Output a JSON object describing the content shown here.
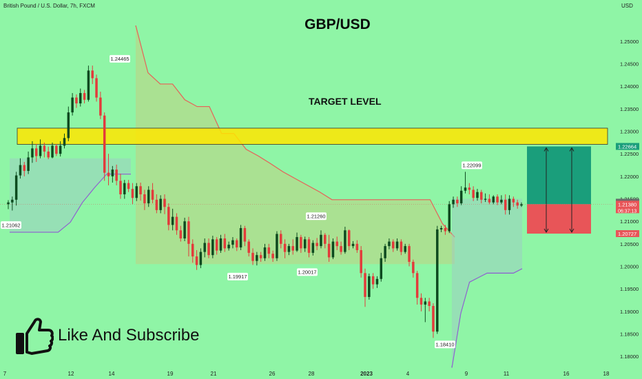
{
  "header": {
    "symbol_line": "British Pound / U.S. Dollar, 7h, FXCM",
    "currency": "USD",
    "title": "GBP/USD",
    "target_label": "TARGET LEVEL",
    "social_text": "Like And Subscribe"
  },
  "colors": {
    "background": "#8ff5a6",
    "bull": "#0d4a1f",
    "bear": "#e23b3b",
    "target_zone": "#ffe600",
    "profit_zone": "#1a9e7b",
    "loss_zone": "#e85558",
    "trail_upper": "#e35a5a",
    "trail_lower": "#8a4fd0"
  },
  "chart_data": {
    "type": "candlestick",
    "y_ticks": [
      "1.25000",
      "1.24500",
      "1.24000",
      "1.23500",
      "1.23000",
      "1.22500",
      "1.22000",
      "1.21500",
      "1.21000",
      "1.20500",
      "1.20000",
      "1.19500",
      "1.19000",
      "1.18500",
      "1.18000"
    ],
    "x_ticks": [
      "7",
      "12",
      "14",
      "19",
      "21",
      "26",
      "28",
      "2023",
      "4",
      "9",
      "11",
      "16",
      "18"
    ],
    "ylim": [
      1.1765,
      1.2555
    ],
    "target_zone": [
      1.2271,
      1.2307
    ],
    "position": {
      "profit_price": "1.22664",
      "last_price": "1.21425",
      "current_price": "1.21380",
      "countdown": "06:37:13",
      "stop_price": "1.20727"
    },
    "annotations": [
      {
        "label": "1.21062",
        "value": 1.21062
      },
      {
        "label": "1.24465",
        "value": 1.24465
      },
      {
        "label": "1.19917",
        "value": 1.19917
      },
      {
        "label": "1.21260",
        "value": 1.2126
      },
      {
        "label": "1.20017",
        "value": 1.20017
      },
      {
        "label": "1.18410",
        "value": 1.1841
      },
      {
        "label": "1.22099",
        "value": 1.22099
      }
    ],
    "trail_upper": [
      1.2535,
      1.243,
      1.2405,
      1.2405,
      1.237,
      1.2355,
      1.2355,
      1.2295,
      1.2295,
      1.226,
      1.2245,
      1.2228,
      1.221,
      1.2195,
      1.218,
      1.2165,
      1.2148,
      1.2148,
      1.2148,
      1.2148,
      1.2148,
      1.2148,
      1.2148,
      1.2148,
      1.2148,
      1.2095,
      1.2065
    ],
    "trail_lower": [
      1.2076,
      1.2076,
      1.2076,
      1.2076,
      1.2076,
      1.2098,
      1.2142,
      1.2175,
      1.2205,
      1.2205,
      1.2205
    ],
    "trail_lower2": [
      1.1775,
      1.1895,
      1.1965,
      1.1975,
      1.1985,
      1.1985,
      1.1985,
      1.1985,
      1.1995
    ],
    "candles": [
      [
        1.2138,
        1.2142,
        1.2127,
        1.2147
      ],
      [
        1.2142,
        1.2148,
        1.2124,
        1.2155
      ],
      [
        1.2148,
        1.2202,
        1.2135,
        1.221
      ],
      [
        1.2202,
        1.2225,
        1.2195,
        1.224
      ],
      [
        1.2225,
        1.2212,
        1.22,
        1.2232
      ],
      [
        1.2212,
        1.2242,
        1.2205,
        1.2255
      ],
      [
        1.2242,
        1.2262,
        1.223,
        1.2278
      ],
      [
        1.2262,
        1.2245,
        1.2232,
        1.2272
      ],
      [
        1.2245,
        1.2268,
        1.224,
        1.2282
      ],
      [
        1.2268,
        1.2255,
        1.2242,
        1.2275
      ],
      [
        1.2255,
        1.2242,
        1.2238,
        1.2266
      ],
      [
        1.2242,
        1.2268,
        1.224,
        1.2275
      ],
      [
        1.2268,
        1.225,
        1.2245,
        1.2272
      ],
      [
        1.225,
        1.2268,
        1.2244,
        1.2278
      ],
      [
        1.2268,
        1.2285,
        1.2262,
        1.2295
      ],
      [
        1.2285,
        1.2342,
        1.2278,
        1.2355
      ],
      [
        1.2342,
        1.2375,
        1.2335,
        1.2385
      ],
      [
        1.2375,
        1.2362,
        1.2352,
        1.2382
      ],
      [
        1.2362,
        1.2385,
        1.2355,
        1.2395
      ],
      [
        1.2385,
        1.237,
        1.2362,
        1.2392
      ],
      [
        1.237,
        1.2435,
        1.2366,
        1.2446
      ],
      [
        1.2435,
        1.2418,
        1.2405,
        1.2446
      ],
      [
        1.2418,
        1.2375,
        1.2366,
        1.2426
      ],
      [
        1.2375,
        1.2335,
        1.2327,
        1.2388
      ],
      [
        1.2335,
        1.2208,
        1.219,
        1.2342
      ],
      [
        1.2208,
        1.22,
        1.218,
        1.225
      ],
      [
        1.22,
        1.2215,
        1.2186,
        1.2223
      ],
      [
        1.2215,
        1.219,
        1.218,
        1.2226
      ],
      [
        1.219,
        1.216,
        1.215,
        1.2206
      ],
      [
        1.216,
        1.2185,
        1.215,
        1.2192
      ],
      [
        1.2185,
        1.2172,
        1.2165,
        1.2192
      ],
      [
        1.2172,
        1.2152,
        1.2138,
        1.2185
      ],
      [
        1.2152,
        1.2178,
        1.2145,
        1.2185
      ],
      [
        1.2178,
        1.216,
        1.2146,
        1.2186
      ],
      [
        1.216,
        1.214,
        1.2125,
        1.217
      ],
      [
        1.214,
        1.217,
        1.2132,
        1.2178
      ],
      [
        1.217,
        1.2148,
        1.214,
        1.2185
      ],
      [
        1.2148,
        1.2125,
        1.2118,
        1.216
      ],
      [
        1.2125,
        1.215,
        1.2118,
        1.2158
      ],
      [
        1.215,
        1.2132,
        1.2116,
        1.216
      ],
      [
        1.2132,
        1.2092,
        1.208,
        1.214
      ],
      [
        1.2092,
        1.211,
        1.208,
        1.2128
      ],
      [
        1.211,
        1.208,
        1.207,
        1.2118
      ],
      [
        1.208,
        1.2062,
        1.2055,
        1.209
      ],
      [
        1.2062,
        1.21,
        1.2056,
        1.2108
      ],
      [
        1.21,
        1.205,
        1.2022,
        1.211
      ],
      [
        1.205,
        1.2022,
        1.2008,
        1.206
      ],
      [
        1.2022,
        1.2003,
        1.1992,
        1.2036
      ],
      [
        1.2003,
        1.2032,
        1.1996,
        1.204
      ],
      [
        1.2032,
        1.2052,
        1.202,
        1.2062
      ],
      [
        1.2052,
        1.2025,
        1.2018,
        1.2062
      ],
      [
        1.2025,
        1.206,
        1.2018,
        1.2068
      ],
      [
        1.206,
        1.2035,
        1.2026,
        1.2065
      ],
      [
        1.2035,
        1.2062,
        1.203,
        1.207
      ],
      [
        1.2062,
        1.204,
        1.2032,
        1.2072
      ],
      [
        1.204,
        1.2048,
        1.2035,
        1.2055
      ],
      [
        1.2048,
        1.2058,
        1.204,
        1.2065
      ],
      [
        1.2058,
        1.2042,
        1.2034,
        1.2062
      ],
      [
        1.2042,
        1.2085,
        1.2036,
        1.2092
      ],
      [
        1.2085,
        1.2055,
        1.2045,
        1.209
      ],
      [
        1.2055,
        1.203,
        1.2022,
        1.206
      ],
      [
        1.203,
        1.2012,
        1.2003,
        1.204
      ],
      [
        1.2012,
        1.2025,
        1.2002,
        1.2032
      ],
      [
        1.2025,
        1.2018,
        1.201,
        1.2032
      ],
      [
        1.2018,
        1.2042,
        1.2012,
        1.205
      ],
      [
        1.2042,
        1.2028,
        1.2018,
        1.205
      ],
      [
        1.2028,
        1.2018,
        1.201,
        1.2035
      ],
      [
        1.2018,
        1.2072,
        1.2012,
        1.2078
      ],
      [
        1.2072,
        1.205,
        1.204,
        1.208
      ],
      [
        1.205,
        1.2032,
        1.2018,
        1.206
      ],
      [
        1.2032,
        1.2045,
        1.2025,
        1.205
      ],
      [
        1.2045,
        1.2035,
        1.2026,
        1.206
      ],
      [
        1.2035,
        1.2065,
        1.2032,
        1.2075
      ],
      [
        1.2065,
        1.204,
        1.203,
        1.207
      ],
      [
        1.204,
        1.206,
        1.2032,
        1.2066
      ],
      [
        1.206,
        1.203,
        1.202,
        1.2065
      ],
      [
        1.203,
        1.2052,
        1.2024,
        1.2058
      ],
      [
        1.2052,
        1.2045,
        1.2036,
        1.2063
      ],
      [
        1.2045,
        1.207,
        1.204,
        1.208
      ],
      [
        1.207,
        1.205,
        1.204,
        1.2074
      ],
      [
        1.205,
        1.202,
        1.201,
        1.207
      ],
      [
        1.202,
        1.2055,
        1.2016,
        1.2062
      ],
      [
        1.2055,
        1.2045,
        1.2036,
        1.2066
      ],
      [
        1.2045,
        1.2032,
        1.2026,
        1.2055
      ],
      [
        1.2032,
        1.208,
        1.2028,
        1.2088
      ],
      [
        1.208,
        1.2045,
        1.2036,
        1.2082
      ],
      [
        1.2045,
        1.205,
        1.204,
        1.2056
      ],
      [
        1.205,
        1.2036,
        1.203,
        1.2058
      ],
      [
        1.2036,
        1.1985,
        1.1975,
        1.2045
      ],
      [
        1.1985,
        1.1932,
        1.191,
        1.1995
      ],
      [
        1.1932,
        1.1978,
        1.1926,
        1.1984
      ],
      [
        1.1978,
        1.196,
        1.195,
        1.1985
      ],
      [
        1.196,
        1.1972,
        1.1952,
        1.1978
      ],
      [
        1.1972,
        1.2018,
        1.1966,
        1.203
      ],
      [
        1.2018,
        1.2045,
        1.201,
        1.205
      ],
      [
        1.2045,
        1.2055,
        1.2038,
        1.2062
      ],
      [
        1.2055,
        1.204,
        1.2032,
        1.206
      ],
      [
        1.204,
        1.2055,
        1.2035,
        1.2062
      ],
      [
        1.2055,
        1.2032,
        1.2025,
        1.206
      ],
      [
        1.2032,
        1.2045,
        1.2028,
        1.205
      ],
      [
        1.2045,
        1.201,
        1.2,
        1.205
      ],
      [
        1.201,
        1.1985,
        1.1975,
        1.2015
      ],
      [
        1.1985,
        1.193,
        1.1915,
        1.199
      ],
      [
        1.193,
        1.1915,
        1.19,
        1.194
      ],
      [
        1.1915,
        1.1922,
        1.1876,
        1.193
      ],
      [
        1.1922,
        1.1912,
        1.19,
        1.193
      ],
      [
        1.1912,
        1.1855,
        1.1841,
        1.1918
      ],
      [
        1.1855,
        1.2082,
        1.185,
        1.209
      ],
      [
        1.2082,
        1.2085,
        1.2076,
        1.209
      ],
      [
        1.2085,
        1.2078,
        1.207,
        1.2092
      ],
      [
        1.2078,
        1.2138,
        1.2074,
        1.2145
      ],
      [
        1.2138,
        1.2148,
        1.213,
        1.2155
      ],
      [
        1.2148,
        1.214,
        1.2132,
        1.2155
      ],
      [
        1.214,
        1.2168,
        1.2136,
        1.2178
      ],
      [
        1.2168,
        1.2175,
        1.2162,
        1.221
      ],
      [
        1.2175,
        1.217,
        1.216,
        1.2185
      ],
      [
        1.217,
        1.2152,
        1.2145,
        1.2178
      ],
      [
        1.2152,
        1.2165,
        1.2146,
        1.2172
      ],
      [
        1.2165,
        1.2148,
        1.214,
        1.217
      ],
      [
        1.2148,
        1.215,
        1.2143,
        1.2162
      ],
      [
        1.215,
        1.2142,
        1.2138,
        1.216
      ],
      [
        1.2142,
        1.2155,
        1.2138,
        1.2158
      ],
      [
        1.2155,
        1.2142,
        1.2136,
        1.216
      ],
      [
        1.2142,
        1.2148,
        1.2138,
        1.2158
      ],
      [
        1.2148,
        1.2125,
        1.2115,
        1.216
      ],
      [
        1.2125,
        1.215,
        1.2115,
        1.2158
      ],
      [
        1.215,
        1.2142,
        1.2132,
        1.2155
      ],
      [
        1.2142,
        1.2135,
        1.2128,
        1.2148
      ],
      [
        1.2135,
        1.2138,
        1.2132,
        1.2142
      ]
    ]
  }
}
